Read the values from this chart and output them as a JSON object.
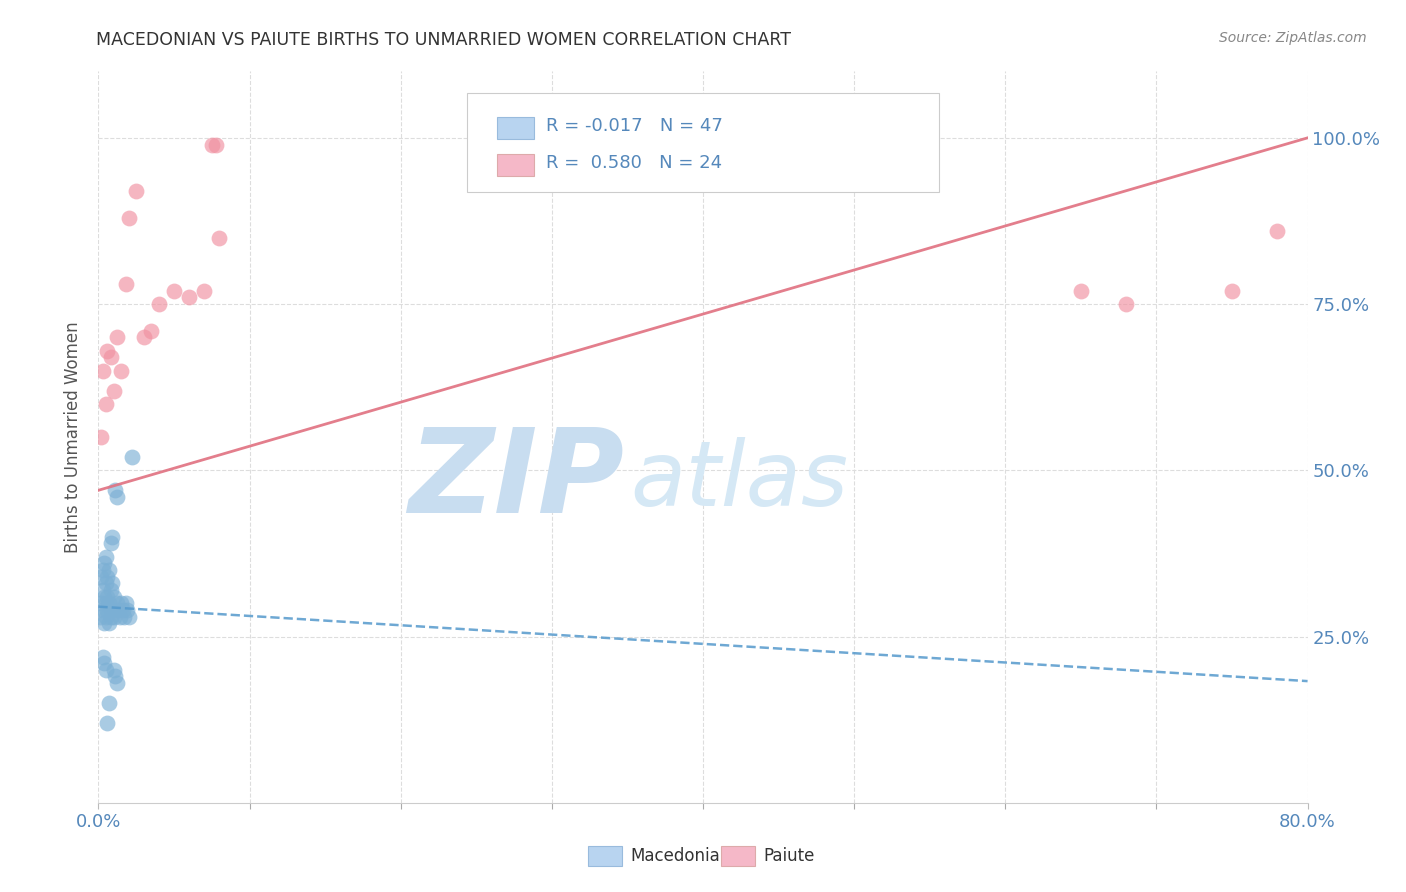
{
  "title": "MACEDONIAN VS PAIUTE BIRTHS TO UNMARRIED WOMEN CORRELATION CHART",
  "source": "Source: ZipAtlas.com",
  "ylabel": "Births to Unmarried Women",
  "ytick_labels": [
    "100.0%",
    "75.0%",
    "50.0%",
    "25.0%"
  ],
  "ytick_values": [
    1.0,
    0.75,
    0.5,
    0.25
  ],
  "legend_entry1": {
    "color": "#b8d4f0",
    "R": "-0.017",
    "N": "47",
    "label": "Macedonians"
  },
  "legend_entry2": {
    "color": "#f5b8c8",
    "R": "0.580",
    "N": "24",
    "label": "Paiute"
  },
  "macedonian_scatter_x": [
    0.001,
    0.002,
    0.002,
    0.003,
    0.003,
    0.003,
    0.004,
    0.004,
    0.004,
    0.005,
    0.005,
    0.005,
    0.005,
    0.006,
    0.006,
    0.006,
    0.007,
    0.007,
    0.007,
    0.008,
    0.008,
    0.009,
    0.009,
    0.01,
    0.01,
    0.011,
    0.012,
    0.012,
    0.013,
    0.014,
    0.015,
    0.016,
    0.017,
    0.018,
    0.019,
    0.02,
    0.022,
    0.003,
    0.004,
    0.005,
    0.006,
    0.007,
    0.008,
    0.009,
    0.01,
    0.011,
    0.012
  ],
  "macedonian_scatter_y": [
    0.28,
    0.3,
    0.34,
    0.29,
    0.32,
    0.35,
    0.27,
    0.31,
    0.36,
    0.28,
    0.3,
    0.33,
    0.37,
    0.29,
    0.31,
    0.34,
    0.27,
    0.3,
    0.35,
    0.28,
    0.32,
    0.29,
    0.33,
    0.28,
    0.31,
    0.47,
    0.46,
    0.3,
    0.29,
    0.28,
    0.3,
    0.29,
    0.28,
    0.3,
    0.29,
    0.28,
    0.52,
    0.22,
    0.21,
    0.2,
    0.12,
    0.15,
    0.39,
    0.4,
    0.2,
    0.19,
    0.18
  ],
  "paiute_scatter_x": [
    0.002,
    0.003,
    0.005,
    0.006,
    0.008,
    0.01,
    0.012,
    0.015,
    0.018,
    0.02,
    0.025,
    0.03,
    0.035,
    0.04,
    0.05,
    0.06,
    0.07,
    0.075,
    0.078,
    0.08,
    0.65,
    0.68,
    0.75,
    0.78
  ],
  "paiute_scatter_y": [
    0.55,
    0.65,
    0.6,
    0.68,
    0.67,
    0.62,
    0.7,
    0.65,
    0.78,
    0.88,
    0.92,
    0.7,
    0.71,
    0.75,
    0.77,
    0.76,
    0.77,
    0.99,
    0.99,
    0.85,
    0.77,
    0.75,
    0.77,
    0.86
  ],
  "macedonian_trendline_x": [
    0.0,
    0.8
  ],
  "macedonian_trendline_y": [
    0.295,
    0.183
  ],
  "paiute_trendline_x": [
    0.0,
    0.8
  ],
  "paiute_trendline_y": [
    0.47,
    1.0
  ],
  "xlim": [
    0.0,
    0.8
  ],
  "ylim": [
    0.0,
    1.1
  ],
  "scatter_color_macedonian": "#7bafd4",
  "scatter_color_paiute": "#f090a0",
  "trendline_color_macedonian": "#5599cc",
  "trendline_color_paiute": "#e07080",
  "watermark_zip_color": "#c8ddf0",
  "watermark_atlas_color": "#d5e8f5",
  "background_color": "#ffffff",
  "grid_color": "#dddddd",
  "tick_color": "#5588bb",
  "title_color": "#333333",
  "source_color": "#888888",
  "ylabel_color": "#555555"
}
